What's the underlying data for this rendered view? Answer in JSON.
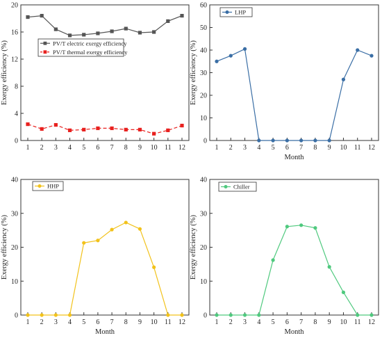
{
  "chart_data": [
    {
      "type": "line",
      "xlabel": "",
      "ylabel": "Exergy efficiency (%)",
      "categories": [
        "1",
        "2",
        "3",
        "4",
        "5",
        "6",
        "7",
        "8",
        "9",
        "10",
        "11",
        "12"
      ],
      "ylim": [
        0,
        20
      ],
      "yticks": [
        0,
        4,
        8,
        12,
        16,
        20
      ],
      "legend_position": "top-left",
      "grid": false,
      "series": [
        {
          "name": "PV/T electric exergy efficiency",
          "color": "#555555",
          "marker": "square",
          "dash": "solid",
          "values": [
            18.2,
            18.4,
            16.4,
            15.5,
            15.6,
            15.8,
            16.1,
            16.5,
            15.9,
            16.0,
            17.6,
            18.4
          ]
        },
        {
          "name": "PV/T thermal exergy efficiency",
          "color": "#e8211f",
          "marker": "square",
          "dash": "dashed",
          "values": [
            2.4,
            1.7,
            2.3,
            1.5,
            1.6,
            1.8,
            1.8,
            1.6,
            1.6,
            1.0,
            1.5,
            2.2
          ]
        }
      ]
    },
    {
      "type": "line",
      "xlabel": "Month",
      "ylabel": "Exergy efficiency (%)",
      "categories": [
        "1",
        "2",
        "3",
        "4",
        "5",
        "6",
        "7",
        "8",
        "9",
        "10",
        "11",
        "12"
      ],
      "ylim": [
        0,
        60
      ],
      "yticks": [
        0,
        10,
        20,
        30,
        40,
        50,
        60
      ],
      "legend_position": "top-left",
      "grid": false,
      "series": [
        {
          "name": "LHP",
          "color": "#3a6ea5",
          "marker": "circle",
          "dash": "solid",
          "values": [
            35.0,
            37.5,
            40.5,
            0,
            0,
            0,
            0,
            0,
            0,
            27.0,
            40.0,
            37.5
          ]
        }
      ]
    },
    {
      "type": "line",
      "xlabel": "Month",
      "ylabel": "Exergy efficiency (%)",
      "categories": [
        "1",
        "2",
        "3",
        "4",
        "5",
        "6",
        "7",
        "8",
        "9",
        "10",
        "11",
        "12"
      ],
      "ylim": [
        0,
        40
      ],
      "yticks": [
        0,
        10,
        20,
        30,
        40
      ],
      "legend_position": "top-left",
      "grid": false,
      "series": [
        {
          "name": "HHP",
          "color": "#f2c21b",
          "marker": "circle",
          "dash": "solid",
          "values": [
            0,
            0,
            0,
            0,
            21.3,
            22.0,
            25.2,
            27.3,
            25.4,
            14.1,
            0,
            0
          ]
        }
      ]
    },
    {
      "type": "line",
      "xlabel": "Month",
      "ylabel": "Exergy efficiency (%)",
      "categories": [
        "1",
        "2",
        "3",
        "4",
        "5",
        "6",
        "7",
        "8",
        "9",
        "10",
        "11",
        "12"
      ],
      "ylim": [
        0,
        40
      ],
      "yticks": [
        0,
        10,
        20,
        30,
        40
      ],
      "legend_position": "top-left",
      "grid": false,
      "series": [
        {
          "name": "Chiller",
          "color": "#4fc97e",
          "marker": "circle",
          "dash": "solid",
          "values": [
            0,
            0,
            0,
            0,
            16.2,
            26.1,
            26.5,
            25.7,
            14.2,
            6.7,
            0,
            0
          ]
        }
      ]
    }
  ]
}
